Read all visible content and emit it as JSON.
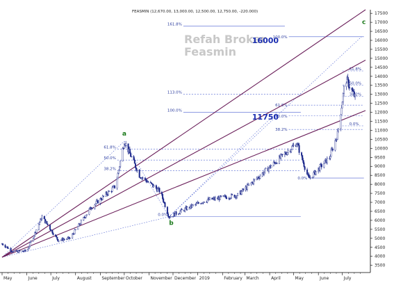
{
  "header": "FEASMIN (12,670.00, 13,000.00, 12,500.00, 12,750.00, -220.000)",
  "watermark": [
    "Refah Broker",
    "Feasmin"
  ],
  "colors": {
    "candle": "#1e2a8c",
    "channel": "#6b1f5a",
    "fib": "#4a5fd0",
    "wave": "#1b7a1b",
    "target": "#1a2db0"
  },
  "chart_data": {
    "type": "candlestick",
    "title": "FEASMIN",
    "y_ticks": [
      3500,
      4000,
      4500,
      5000,
      5500,
      6000,
      6500,
      7000,
      7500,
      8000,
      8500,
      9000,
      9500,
      10000,
      10500,
      11000,
      11500,
      12000,
      12500,
      13000,
      13500,
      14000,
      14500,
      15000,
      15500,
      16000,
      16500,
      17000,
      17500
    ],
    "ylim": [
      3100,
      17700
    ],
    "x_axis_labels": [
      "May",
      "June",
      "July",
      "August",
      "September",
      "October",
      "November",
      "December",
      "2019",
      "February",
      "March",
      "April",
      "May",
      "June",
      "July"
    ],
    "last_bar": {
      "open": 12670,
      "high": 13000,
      "low": 12500,
      "close": 12750,
      "change": -220
    },
    "price_path": [
      {
        "date": "2018-05-01",
        "price": 4700
      },
      {
        "date": "2018-05-15",
        "price": 4250
      },
      {
        "date": "2018-06-01",
        "price": 4300
      },
      {
        "date": "2018-06-20",
        "price": 6200
      },
      {
        "date": "2018-07-10",
        "price": 4900
      },
      {
        "date": "2018-07-25",
        "price": 5000
      },
      {
        "date": "2018-08-20",
        "price": 6700
      },
      {
        "date": "2018-09-20",
        "price": 7900
      },
      {
        "date": "2018-10-01",
        "price": 10400
      },
      {
        "date": "2018-10-20",
        "price": 8500
      },
      {
        "date": "2018-11-15",
        "price": 7600
      },
      {
        "date": "2018-11-26",
        "price": 6200
      },
      {
        "date": "2018-12-15",
        "price": 6600
      },
      {
        "date": "2019-01-10",
        "price": 7100
      },
      {
        "date": "2019-02-20",
        "price": 7400
      },
      {
        "date": "2019-03-15",
        "price": 8300
      },
      {
        "date": "2019-04-15",
        "price": 9500
      },
      {
        "date": "2019-05-05",
        "price": 10300
      },
      {
        "date": "2019-05-20",
        "price": 8300
      },
      {
        "date": "2019-06-15",
        "price": 9500
      },
      {
        "date": "2019-06-25",
        "price": 10800
      },
      {
        "date": "2019-07-05",
        "price": 13900
      },
      {
        "date": "2019-07-18",
        "price": 12750
      }
    ],
    "wave_labels": [
      {
        "label": "a",
        "date": "2018-10-01",
        "price": 10400
      },
      {
        "label": "b",
        "date": "2018-11-26",
        "price": 6200
      },
      {
        "label": "c",
        "date": "2019-07-30",
        "price": 16900
      }
    ],
    "channel_lines": [
      {
        "from": {
          "date": "2018-05-01",
          "price": 3950
        },
        "to": {
          "date": "2019-07-30",
          "price": 17700
        }
      },
      {
        "from": {
          "date": "2018-05-01",
          "price": 3950
        },
        "to": {
          "date": "2019-07-30",
          "price": 14900
        }
      },
      {
        "from": {
          "date": "2018-05-01",
          "price": 3950
        },
        "to": {
          "date": "2019-07-30",
          "price": 12100
        }
      }
    ],
    "fib_retracement_a_b": [
      {
        "label": "161.8%",
        "price": 16800
      },
      {
        "label": "113.0%",
        "price": 13000
      },
      {
        "label": "100.0%",
        "price": 12000
      },
      {
        "label": "61.8%",
        "price": 9950
      },
      {
        "label": "50.0%",
        "price": 9350
      },
      {
        "label": "38.2%",
        "price": 8750
      },
      {
        "label": "0.0%",
        "price": 6200
      }
    ],
    "fib_extension": [
      {
        "label": "100.0%",
        "price": 16200
      },
      {
        "label": "61.8%",
        "price": 12400
      },
      {
        "label": "50.0%",
        "price": 11800
      },
      {
        "label": "38.2%",
        "price": 11050
      }
    ],
    "fib_recent_swing": [
      {
        "label": "61.8%",
        "price": 14300
      },
      {
        "label": "50.0%",
        "price": 13500
      },
      {
        "label": "38.2%",
        "price": 12900
      },
      {
        "label": "0.0%",
        "price": 11250
      }
    ],
    "recent_swing_base_label": {
      "label": "0.0%",
      "price": 8350
    },
    "targets": [
      {
        "label": "16000",
        "price": 16000
      },
      {
        "label": "11750",
        "price": 11750
      }
    ]
  }
}
